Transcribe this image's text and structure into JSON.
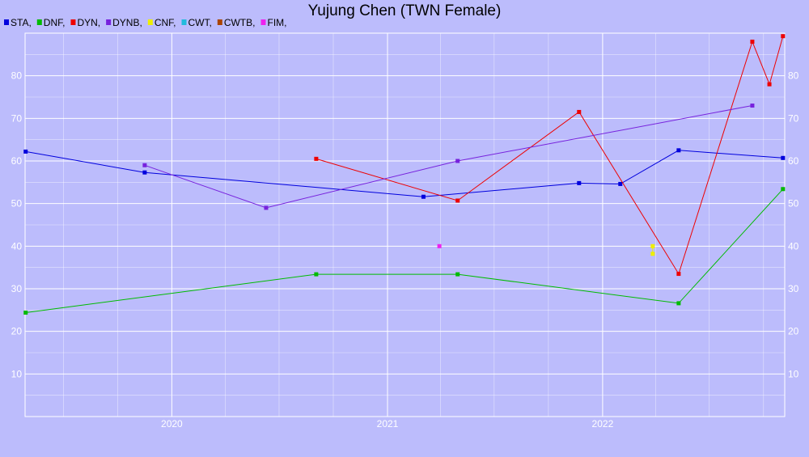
{
  "chart_data": {
    "type": "line",
    "title": "Yujung Chen (TWN Female)",
    "xlabel": "",
    "ylabel": "",
    "xlim": [
      "2019-04-27",
      "2022-11-06"
    ],
    "ylim": [
      0,
      90
    ],
    "x_ticks": [
      "2020",
      "2021",
      "2022"
    ],
    "y_ticks": [
      10,
      20,
      30,
      40,
      50,
      60,
      70,
      80
    ],
    "grid": true,
    "legend_position": "top-left",
    "legend": [
      "STA,",
      "DNF,",
      "DYN,",
      "DYNB,",
      "CNF,",
      "CWT,",
      "CWTB,",
      "FIM,"
    ],
    "series": [
      {
        "name": "STA",
        "color": "#0000dd",
        "points": [
          {
            "x": "2019-04-28",
            "y": 62.2
          },
          {
            "x": "2019-11-16",
            "y": 57.3
          },
          {
            "x": "2021-03-03",
            "y": 51.6
          },
          {
            "x": "2021-11-22",
            "y": 54.8
          },
          {
            "x": "2022-01-31",
            "y": 54.6
          },
          {
            "x": "2022-05-10",
            "y": 62.5
          },
          {
            "x": "2022-11-03",
            "y": 60.7
          }
        ]
      },
      {
        "name": "DNF",
        "color": "#00bb00",
        "points": [
          {
            "x": "2019-04-28",
            "y": 24.4
          },
          {
            "x": "2020-09-02",
            "y": 33.4
          },
          {
            "x": "2021-04-30",
            "y": 33.4
          },
          {
            "x": "2022-05-10",
            "y": 26.6
          },
          {
            "x": "2022-11-03",
            "y": 53.4
          }
        ]
      },
      {
        "name": "DYN",
        "color": "#ee0000",
        "points": [
          {
            "x": "2020-09-02",
            "y": 60.5
          },
          {
            "x": "2021-04-30",
            "y": 50.7
          },
          {
            "x": "2021-11-22",
            "y": 71.5
          },
          {
            "x": "2022-05-10",
            "y": 33.5
          },
          {
            "x": "2022-09-12",
            "y": 88.0
          },
          {
            "x": "2022-10-11",
            "y": 78.0
          },
          {
            "x": "2022-11-03",
            "y": 89.3
          }
        ]
      },
      {
        "name": "DYNB",
        "color": "#7722dd",
        "points": [
          {
            "x": "2019-11-16",
            "y": 59.0
          },
          {
            "x": "2020-06-09",
            "y": 49.0
          },
          {
            "x": "2021-04-30",
            "y": 60.0
          },
          {
            "x": "2022-09-12",
            "y": 73.0
          }
        ]
      },
      {
        "name": "CNF",
        "color": "#eeee00",
        "points": [
          {
            "x": "2022-03-27",
            "y": 40.0
          },
          {
            "x": "2022-03-27",
            "y": 38.2
          }
        ]
      },
      {
        "name": "CWT",
        "color": "#22bbdd",
        "points": []
      },
      {
        "name": "CWTB",
        "color": "#aa4400",
        "points": []
      },
      {
        "name": "FIM",
        "color": "#ee22ee",
        "points": [
          {
            "x": "2021-03-30",
            "y": 40.0
          }
        ]
      }
    ]
  }
}
